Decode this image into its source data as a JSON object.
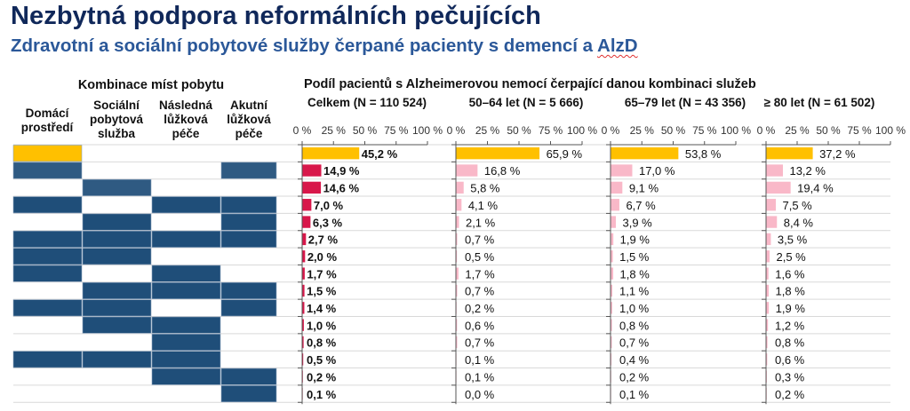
{
  "header": {
    "title": "Nezbytná podpora neformálních pečujících",
    "subtitle_main": "Zdravotní a sociální pobytové služby čerpané pacienty s demencí a ",
    "subtitle_flagged": "AlzD"
  },
  "combination": {
    "title": "Kombinace míst pobytu",
    "columns": [
      {
        "lines": [
          "Domácí",
          "prostředí"
        ]
      },
      {
        "lines": [
          "Sociální",
          "pobytová",
          "služba"
        ]
      },
      {
        "lines": [
          "Následná",
          "lůžková",
          "péče"
        ]
      },
      {
        "lines": [
          "Akutní",
          "lůžková",
          "péče"
        ]
      }
    ],
    "rows": [
      [
        1,
        0,
        0,
        0
      ],
      [
        1,
        0,
        0,
        1
      ],
      [
        0,
        1,
        0,
        0
      ],
      [
        1,
        0,
        1,
        1
      ],
      [
        0,
        1,
        0,
        1
      ],
      [
        1,
        1,
        1,
        1
      ],
      [
        1,
        1,
        0,
        0
      ],
      [
        1,
        0,
        1,
        0
      ],
      [
        0,
        1,
        1,
        1
      ],
      [
        1,
        1,
        0,
        1
      ],
      [
        0,
        1,
        1,
        0
      ],
      [
        0,
        0,
        1,
        0
      ],
      [
        1,
        1,
        1,
        0
      ],
      [
        0,
        0,
        1,
        1
      ],
      [
        0,
        0,
        0,
        1
      ]
    ],
    "colors": {
      "home_only": "#ffc000",
      "light": "#2f5a82",
      "dark": "#1f4e79"
    }
  },
  "chart_data": {
    "type": "bar",
    "orientation": "horizontal",
    "title": "Podíl pacientů s Alzheimerovou nemocí čerpající danou kombinaci služeb",
    "xlim": [
      0,
      100
    ],
    "xticks": [
      "0 %",
      "25 %",
      "50 %",
      "75 %",
      "100 %"
    ],
    "xtick_values": [
      0,
      25,
      50,
      75,
      100
    ],
    "colors": {
      "first_row": "#ffc000",
      "total": "#d8174a",
      "age_group": "#f9b8c8"
    },
    "series": [
      {
        "name": "Celkem (N = 110 524)",
        "bold_labels": true,
        "values": [
          45.2,
          14.9,
          14.6,
          7.0,
          6.3,
          2.7,
          2.0,
          1.7,
          1.5,
          1.4,
          1.0,
          0.8,
          0.5,
          0.2,
          0.1
        ],
        "labels": [
          "45,2 %",
          "14,9 %",
          "14,6 %",
          "7,0 %",
          "6,3 %",
          "2,7 %",
          "2,0 %",
          "1,7 %",
          "1,5 %",
          "1,4 %",
          "1,0 %",
          "0,8 %",
          "0,5 %",
          "0,2 %",
          "0,1 %"
        ]
      },
      {
        "name": "50–64 let (N = 5 666)",
        "bold_labels": false,
        "values": [
          65.9,
          16.8,
          5.8,
          4.1,
          2.1,
          0.7,
          0.5,
          1.7,
          0.7,
          0.2,
          0.6,
          0.7,
          0.1,
          0.1,
          0.0
        ],
        "labels": [
          "65,9 %",
          "16,8 %",
          "5,8 %",
          "4,1 %",
          "2,1 %",
          "0,7 %",
          "0,5 %",
          "1,7 %",
          "0,7 %",
          "0,2 %",
          "0,6 %",
          "0,7 %",
          "0,1 %",
          "0,1 %",
          "0,0 %"
        ]
      },
      {
        "name": "65–79 let (N = 43 356)",
        "bold_labels": false,
        "values": [
          53.8,
          17.0,
          9.1,
          6.7,
          3.9,
          1.9,
          1.5,
          1.8,
          1.1,
          1.0,
          0.8,
          0.7,
          0.4,
          0.2,
          0.1
        ],
        "labels": [
          "53,8 %",
          "17,0 %",
          "9,1 %",
          "6,7 %",
          "3,9 %",
          "1,9 %",
          "1,5 %",
          "1,8 %",
          "1,1 %",
          "1,0 %",
          "0,8 %",
          "0,7 %",
          "0,4 %",
          "0,2 %",
          "0,1 %"
        ]
      },
      {
        "name": "≥ 80 let (N = 61 502)",
        "bold_labels": false,
        "values": [
          37.2,
          13.2,
          19.4,
          7.5,
          8.4,
          3.5,
          2.5,
          1.6,
          1.8,
          1.9,
          1.2,
          0.8,
          0.6,
          0.3,
          0.2
        ],
        "labels": [
          "37,2 %",
          "13,2 %",
          "19,4 %",
          "7,5 %",
          "8,4 %",
          "3,5 %",
          "2,5 %",
          "1,6 %",
          "1,8 %",
          "1,9 %",
          "1,2 %",
          "0,8 %",
          "0,6 %",
          "0,3 %",
          "0,2 %"
        ]
      }
    ]
  }
}
